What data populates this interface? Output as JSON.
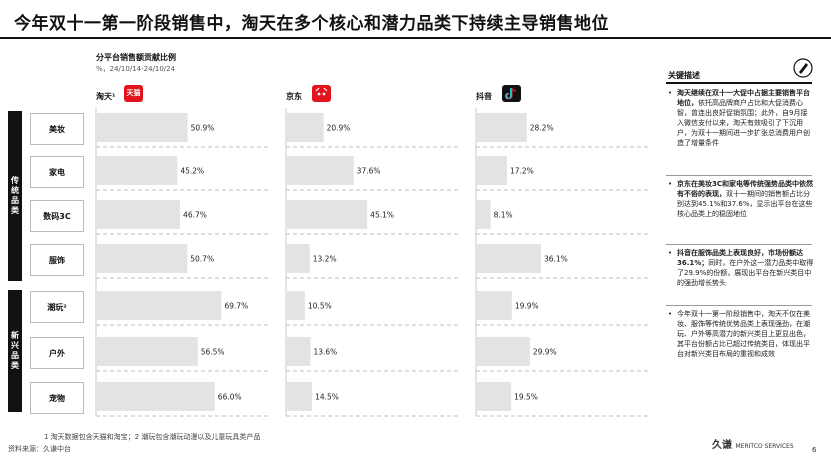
{
  "page": {
    "title": "今年双十一第一阶段销售中，淘天在多个核心和潜力品类下持续主导销售地位",
    "subtitle": "分平台销售额贡献比例",
    "subnote": "%，24/10/14-24/10/24"
  },
  "platforms": [
    {
      "label": "淘天¹",
      "logo_text": "天猫"
    },
    {
      "label": "京东",
      "logo_text": ""
    },
    {
      "label": "抖音",
      "logo_text": ""
    }
  ],
  "groups": [
    {
      "label": "传统品类"
    },
    {
      "label": "新兴品类"
    }
  ],
  "chart_data": {
    "type": "bar",
    "title": "分平台销售额贡献比例",
    "unit": "%",
    "categories": [
      "美妆",
      "家电",
      "数码3C",
      "服饰",
      "潮玩²",
      "户外",
      "宠物"
    ],
    "series": [
      {
        "name": "淘天¹",
        "values": [
          50.9,
          45.2,
          46.7,
          50.7,
          69.7,
          56.5,
          66.0
        ],
        "labels": [
          "50.9%",
          "45.2%",
          "46.7%",
          "50.7%",
          "69.7%",
          "56.5%",
          "66.0%"
        ]
      },
      {
        "name": "京东",
        "values": [
          20.9,
          37.6,
          45.1,
          13.2,
          10.5,
          13.6,
          14.5
        ],
        "labels": [
          "20.9%",
          "37.6%",
          "45.1%",
          "13.2%",
          "10.5%",
          "13.6%",
          "14.5%"
        ]
      },
      {
        "name": "抖音",
        "values": [
          28.2,
          17.2,
          8.1,
          36.1,
          19.9,
          29.9,
          19.5
        ],
        "labels": [
          "28.2%",
          "17.2%",
          "8.1%",
          "36.1%",
          "19.9%",
          "29.9%",
          "19.5%"
        ]
      }
    ],
    "ylim": [
      0,
      100
    ],
    "bar_color": "#e3e3e3"
  },
  "sidebar": {
    "title": "关键描述",
    "bullets": [
      {
        "bold": "淘天继续在双十一大促中占据主要销售平台地位，",
        "text": "依托高品牌商户占比和大促消费心智，曾连出良好促销氛围；此外，自9月接入微信支付以来，淘天有效吸引了下沉用户，为双十一期间进一步扩张总消费用户创造了增量条件"
      },
      {
        "bold": "京东在美妆3C和家电等传统强势品类中依然有不俗的表现，",
        "text": "双十一期间的销售额占比分别达到45.1%和37.6%，显示出平台在这些核心品类上的稳固地位"
      },
      {
        "bold": "抖音在服饰品类上表现良好，市场份额达36.1%；",
        "text": "同时，在户外这一潜力品类中取得了29.9%的份额，展现出平台在新兴类目中的强劲增长势头"
      },
      {
        "bold": "",
        "text": "今年双十一第一阶段销售中，淘天不仅在美妆、服饰等传统优势品类上表现强劲，在潮玩、户外等高潜力的新兴类目上更显出色，其平台份额占比已超过传统类目，体现出平台对新兴类目布局的重视和成效"
      }
    ]
  },
  "footnotes": {
    "note": "1  淘天数据包含天猫和淘宝；2  潮玩包含潮玩动漫以及儿童玩具类产品",
    "source": "资料来源：久谦中台"
  },
  "brand": {
    "name": "久谦",
    "sub": "MERITCO SERVICES"
  },
  "page_number": "6",
  "colors": {
    "bar": "#e3e3e3",
    "accent": "#111111",
    "tmall": "#e4141c",
    "jd": "#e4141c"
  }
}
